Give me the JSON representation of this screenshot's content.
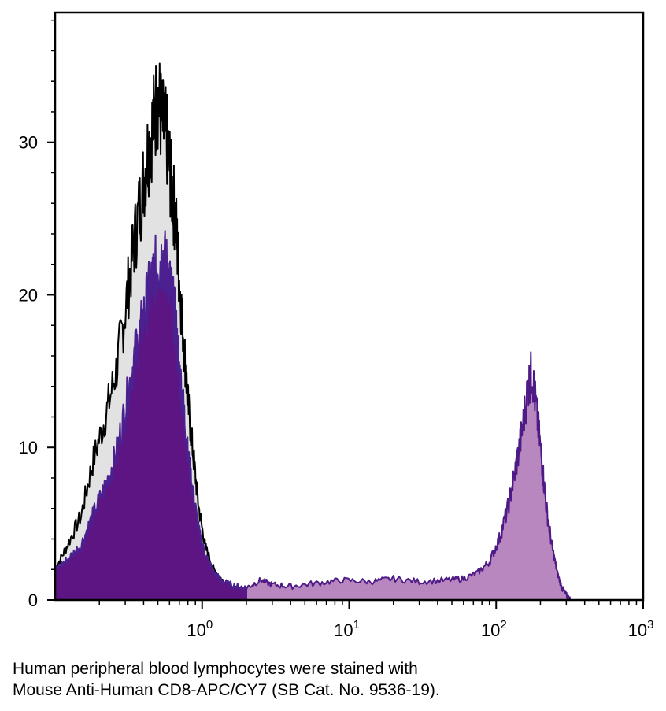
{
  "chart_data": {
    "type": "area",
    "title": "",
    "xlabel": "",
    "ylabel": "",
    "x_scale": "log",
    "xlim": [
      0.1,
      1000
    ],
    "ylim": [
      0,
      38.5
    ],
    "x_ticks": [
      {
        "value": 1,
        "base": "10",
        "exp": "0"
      },
      {
        "value": 10,
        "base": "10",
        "exp": "1"
      },
      {
        "value": 100,
        "base": "10",
        "exp": "2"
      },
      {
        "value": 1000,
        "base": "10",
        "exp": "3"
      }
    ],
    "y_ticks": [
      {
        "value": 0,
        "label": "0"
      },
      {
        "value": 10,
        "label": "10"
      },
      {
        "value": 20,
        "label": "20"
      },
      {
        "value": 30,
        "label": "30"
      }
    ],
    "series": [
      {
        "fill": "#e2e2e2",
        "stroke": "#000000",
        "x": [
          0.1,
          0.12,
          0.15,
          0.18,
          0.22,
          0.26,
          0.3,
          0.34,
          0.38,
          0.42,
          0.46,
          0.5,
          0.54,
          0.58,
          0.62,
          0.66,
          0.7,
          0.75,
          0.8,
          0.87,
          0.95,
          1.05,
          1.2,
          1.4,
          1.7,
          2.1,
          2.6,
          3.2
        ],
        "values": [
          2,
          3.5,
          5.5,
          9,
          12,
          15,
          19,
          23,
          26,
          29,
          31,
          33,
          31,
          30,
          27,
          25,
          21,
          17,
          13,
          9.5,
          6,
          3.5,
          2,
          1.2,
          0.7,
          0.4,
          0.2,
          0
        ]
      },
      {
        "fill": "#5c1582",
        "stroke": "#4b2090",
        "x": [
          0.1,
          0.12,
          0.15,
          0.18,
          0.22,
          0.26,
          0.3,
          0.34,
          0.38,
          0.42,
          0.46,
          0.5,
          0.54,
          0.58,
          0.62,
          0.66,
          0.7,
          0.75,
          0.8,
          0.87,
          0.95,
          1.05,
          1.2,
          1.4,
          1.7,
          2.0
        ],
        "values": [
          2,
          2.6,
          3.6,
          5.5,
          7.5,
          9.5,
          12.5,
          15.5,
          17.5,
          19.5,
          21,
          22,
          22.5,
          21.5,
          20,
          18,
          15,
          12.5,
          9.5,
          7,
          4.5,
          3,
          1.8,
          1.2,
          0.9,
          0.8
        ]
      },
      {
        "fill": "#b987c0",
        "stroke": "#4e1a86",
        "x": [
          2.0,
          2.5,
          3,
          4,
          6,
          9,
          14,
          20,
          30,
          45,
          60,
          75,
          90,
          105,
          120,
          135,
          150,
          165,
          175,
          190,
          205,
          220,
          240,
          260,
          280,
          300,
          320
        ],
        "values": [
          0.8,
          1.3,
          1.0,
          0.9,
          1.1,
          1.3,
          1.2,
          1.4,
          1.2,
          1.3,
          1.4,
          1.8,
          2.5,
          4,
          6,
          8.5,
          11,
          14,
          15,
          12,
          9,
          6,
          3.5,
          1.8,
          0.8,
          0.3,
          0
        ]
      }
    ]
  },
  "caption": {
    "line1": "Human peripheral blood lymphocytes were stained with",
    "line2": "Mouse Anti-Human CD8-APC/CY7 (SB Cat. No. 9536-19)."
  }
}
